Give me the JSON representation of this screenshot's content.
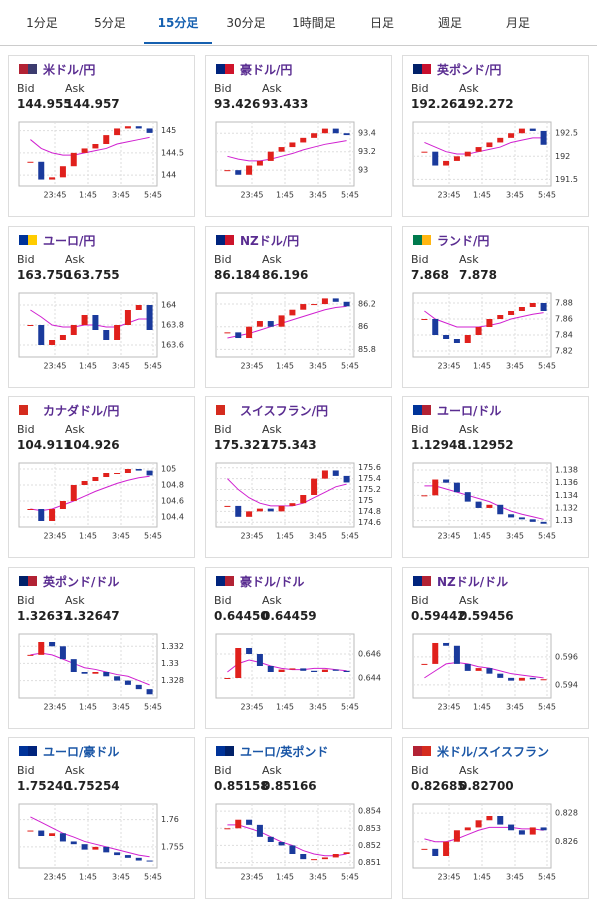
{
  "tabs": {
    "items": [
      "1分足",
      "5分足",
      "15分足",
      "30分足",
      "1時間足",
      "日足",
      "週足",
      "月足"
    ],
    "active": 2
  },
  "labels": {
    "bid": "Bid",
    "ask": "Ask"
  },
  "xlabels": [
    "23:45",
    "1:45",
    "3:45",
    "5:45"
  ],
  "cards": [
    {
      "name": "米ドル/円",
      "bid": "144.955",
      "ask": "144.957",
      "ylim": [
        143.8,
        145.15
      ],
      "yticks": [
        144,
        144.5,
        145
      ],
      "closes": [
        144.3,
        143.9,
        143.95,
        144.2,
        144.5,
        144.6,
        144.7,
        144.9,
        145.05,
        145.1,
        145.05,
        144.95
      ],
      "ma": [
        144.8,
        144.6,
        144.5,
        144.45,
        144.45,
        144.5,
        144.55,
        144.6,
        144.7,
        144.75,
        144.8,
        144.85
      ]
    },
    {
      "name": "豪ドル/円",
      "bid": "93.426",
      "ask": "93.433",
      "ylim": [
        92.85,
        93.5
      ],
      "yticks": [
        93,
        93.2,
        93.4
      ],
      "closes": [
        93.0,
        92.95,
        93.05,
        93.1,
        93.2,
        93.25,
        93.3,
        93.35,
        93.4,
        93.45,
        93.4,
        93.38
      ],
      "ma": [
        93.15,
        93.12,
        93.1,
        93.1,
        93.12,
        93.15,
        93.18,
        93.22,
        93.25,
        93.28,
        93.3,
        93.32
      ]
    },
    {
      "name": "英ポンド/円",
      "bid": "192.262",
      "ask": "192.272",
      "ylim": [
        191.4,
        192.7
      ],
      "yticks": [
        191.5,
        192,
        192.5
      ],
      "closes": [
        192.1,
        191.8,
        191.9,
        192.0,
        192.1,
        192.2,
        192.3,
        192.4,
        192.5,
        192.6,
        192.55,
        192.25
      ],
      "ma": [
        192.3,
        192.2,
        192.1,
        192.05,
        192.05,
        192.1,
        192.15,
        192.2,
        192.3,
        192.35,
        192.4,
        192.4
      ]
    },
    {
      "name": "ユーロ/円",
      "bid": "163.750",
      "ask": "163.755",
      "ylim": [
        163.5,
        164.1
      ],
      "yticks": [
        163.6,
        163.8,
        164
      ],
      "closes": [
        163.8,
        163.6,
        163.65,
        163.7,
        163.8,
        163.9,
        163.75,
        163.65,
        163.8,
        163.95,
        164.0,
        163.75
      ],
      "ma": [
        163.95,
        163.88,
        163.8,
        163.78,
        163.78,
        163.8,
        163.8,
        163.78,
        163.78,
        163.82,
        163.86,
        163.86
      ]
    },
    {
      "name": "NZドル/円",
      "bid": "86.184",
      "ask": "86.196",
      "ylim": [
        85.75,
        86.28
      ],
      "yticks": [
        85.8,
        86,
        86.2
      ],
      "closes": [
        85.95,
        85.9,
        86.0,
        86.05,
        86.0,
        86.1,
        86.15,
        86.2,
        86.2,
        86.25,
        86.22,
        86.18
      ],
      "ma": [
        85.9,
        85.92,
        85.94,
        85.97,
        86.0,
        86.03,
        86.06,
        86.09,
        86.12,
        86.15,
        86.17,
        86.18
      ]
    },
    {
      "name": "ランド/円",
      "bid": "7.868",
      "ask": "7.878",
      "ylim": [
        7.815,
        7.89
      ],
      "yticks": [
        7.82,
        7.84,
        7.86,
        7.88
      ],
      "closes": [
        7.86,
        7.84,
        7.835,
        7.83,
        7.84,
        7.85,
        7.86,
        7.865,
        7.87,
        7.875,
        7.88,
        7.87
      ],
      "ma": [
        7.87,
        7.86,
        7.855,
        7.85,
        7.85,
        7.85,
        7.852,
        7.855,
        7.86,
        7.863,
        7.866,
        7.868
      ]
    },
    {
      "name": "カナダドル/円",
      "bid": "104.911",
      "ask": "104.926",
      "ylim": [
        104.3,
        105.05
      ],
      "yticks": [
        104.4,
        104.6,
        104.8,
        105
      ],
      "closes": [
        104.5,
        104.35,
        104.5,
        104.6,
        104.8,
        104.85,
        104.9,
        104.95,
        104.95,
        105.0,
        104.98,
        104.92
      ],
      "ma": [
        104.5,
        104.48,
        104.5,
        104.55,
        104.6,
        104.66,
        104.72,
        104.77,
        104.82,
        104.86,
        104.89,
        104.91
      ]
    },
    {
      "name": "スイスフラン/円",
      "bid": "175.327",
      "ask": "175.343",
      "ylim": [
        174.55,
        175.65
      ],
      "yticks": [
        174.6,
        174.8,
        175,
        175.2,
        175.4,
        175.6
      ],
      "closes": [
        174.9,
        174.7,
        174.8,
        174.85,
        174.8,
        174.9,
        174.95,
        175.1,
        175.4,
        175.55,
        175.45,
        175.33
      ],
      "ma": [
        175.4,
        175.2,
        175.05,
        174.95,
        174.9,
        174.9,
        174.9,
        174.95,
        175.05,
        175.15,
        175.25,
        175.3
      ]
    },
    {
      "name": "ユーロ/ドル",
      "bid": "1.12948",
      "ask": "1.12952",
      "ylim": [
        1.1293,
        1.1388
      ],
      "yticks": [
        1.13,
        1.132,
        1.134,
        1.136,
        1.138
      ],
      "closes": [
        1.134,
        1.1365,
        1.136,
        1.1345,
        1.133,
        1.132,
        1.1325,
        1.131,
        1.1305,
        1.1302,
        1.1298,
        1.1295
      ],
      "ma": [
        1.1355,
        1.1355,
        1.135,
        1.1345,
        1.134,
        1.1335,
        1.133,
        1.1322,
        1.1315,
        1.131,
        1.1306,
        1.1302
      ]
    },
    {
      "name": "英ポンド/ドル",
      "bid": "1.32637",
      "ask": "1.32647",
      "ylim": [
        1.3262,
        1.3332
      ],
      "yticks": [
        1.328,
        1.33,
        1.332
      ],
      "closes": [
        1.331,
        1.3325,
        1.332,
        1.3305,
        1.329,
        1.3288,
        1.329,
        1.3285,
        1.328,
        1.3275,
        1.327,
        1.3264
      ],
      "ma": [
        1.331,
        1.3312,
        1.331,
        1.3305,
        1.33,
        1.3295,
        1.3293,
        1.329,
        1.3287,
        1.3285,
        1.328,
        1.3275
      ]
    },
    {
      "name": "豪ドル/ドル",
      "bid": "0.64450",
      "ask": "0.64459",
      "ylim": [
        0.6425,
        0.6475
      ],
      "yticks": [
        0.644,
        0.646
      ],
      "closes": [
        0.644,
        0.6465,
        0.646,
        0.645,
        0.6445,
        0.6447,
        0.6448,
        0.6446,
        0.6445,
        0.6447,
        0.6446,
        0.6445
      ],
      "ma": [
        0.6445,
        0.6452,
        0.6455,
        0.6453,
        0.645,
        0.6448,
        0.6447,
        0.6447,
        0.6448,
        0.6448,
        0.6447,
        0.6446
      ]
    },
    {
      "name": "NZドル/ドル",
      "bid": "0.59442",
      "ask": "0.59456",
      "ylim": [
        0.5932,
        0.5975
      ],
      "yticks": [
        0.594,
        0.596
      ],
      "closes": [
        0.5955,
        0.597,
        0.5968,
        0.5955,
        0.595,
        0.5952,
        0.5948,
        0.5945,
        0.5943,
        0.5945,
        0.5944,
        0.5944
      ],
      "ma": [
        0.5945,
        0.595,
        0.5955,
        0.5956,
        0.5955,
        0.5953,
        0.5952,
        0.595,
        0.5948,
        0.5947,
        0.5946,
        0.5945
      ]
    },
    {
      "name": "ユーロ/豪ドル",
      "bid": "1.75240",
      "ask": "1.75254",
      "ylim": [
        1.7515,
        1.7625
      ],
      "yticks": [
        1.755,
        1.76
      ],
      "closes": [
        1.758,
        1.757,
        1.7575,
        1.756,
        1.7555,
        1.7545,
        1.755,
        1.754,
        1.7535,
        1.753,
        1.7525,
        1.7524
      ],
      "ma": [
        1.7605,
        1.7595,
        1.7585,
        1.7575,
        1.7568,
        1.756,
        1.7555,
        1.755,
        1.7545,
        1.754,
        1.7535,
        1.7532
      ]
    },
    {
      "name": "ユーロ/英ポンド",
      "bid": "0.85158",
      "ask": "0.85166",
      "ylim": [
        0.8508,
        0.8543
      ],
      "yticks": [
        0.851,
        0.852,
        0.853,
        0.854
      ],
      "closes": [
        0.853,
        0.8535,
        0.8532,
        0.8525,
        0.8522,
        0.852,
        0.8515,
        0.8512,
        0.8512,
        0.8513,
        0.8515,
        0.8516
      ],
      "ma": [
        0.8532,
        0.8532,
        0.853,
        0.8528,
        0.8525,
        0.8522,
        0.852,
        0.8517,
        0.8515,
        0.8514,
        0.8514,
        0.8515
      ]
    },
    {
      "name": "米ドル/スイスフラン",
      "bid": "0.82685",
      "ask": "0.82700",
      "ylim": [
        0.8243,
        0.8285
      ],
      "yticks": [
        0.826,
        0.828
      ],
      "closes": [
        0.8255,
        0.825,
        0.826,
        0.8268,
        0.827,
        0.8275,
        0.8278,
        0.8272,
        0.8268,
        0.8265,
        0.827,
        0.8268
      ],
      "ma": [
        0.8262,
        0.826,
        0.826,
        0.8262,
        0.8265,
        0.8268,
        0.827,
        0.827,
        0.827,
        0.8269,
        0.8269,
        0.8268
      ]
    }
  ]
}
